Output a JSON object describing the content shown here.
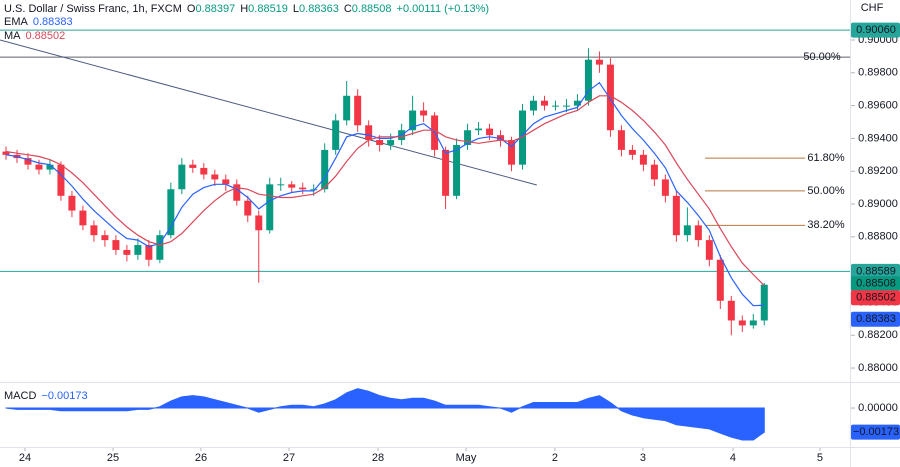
{
  "chart_data": [
    {
      "type": "candlestick",
      "title": "U.S. Dollar / Swiss Franc, 1h, FXCM",
      "ohlc": [
        {
          "key": "O",
          "value": 0.88397
        },
        {
          "key": "H",
          "value": 0.88519
        },
        {
          "key": "L",
          "value": 0.88363
        },
        {
          "key": "C",
          "value": 0.88508
        }
      ],
      "change": "+0.00111 (+0.13%)",
      "currency": "CHF",
      "up_color": "#089981",
      "down_color": "#f23645",
      "open": [
        0.8932,
        0.893,
        0.8928,
        0.8924,
        0.8921,
        0.8924,
        0.8905,
        0.8896,
        0.8887,
        0.8881,
        0.8878,
        0.8872,
        0.8869,
        0.8875,
        0.8866,
        0.8881,
        0.8909,
        0.8924,
        0.8922,
        0.8918,
        0.8915,
        0.8912,
        0.8902,
        0.8893,
        0.8884,
        0.8912,
        0.8912,
        0.891,
        0.8909,
        0.8909,
        0.8933,
        0.8951,
        0.8966,
        0.8948,
        0.8939,
        0.8936,
        0.8939,
        0.8945,
        0.8957,
        0.8954,
        0.8933,
        0.8905,
        0.8936,
        0.8945,
        0.8946,
        0.8942,
        0.8939,
        0.8924,
        0.8957,
        0.8963,
        0.896,
        0.896,
        0.896,
        0.8963,
        0.8988,
        0.8985,
        0.8945,
        0.8933,
        0.893,
        0.8924,
        0.8915,
        0.8905,
        0.8881,
        0.8887,
        0.8878,
        0.8866,
        0.8841,
        0.8829,
        0.8826,
        0.8829
      ],
      "high": [
        0.8935,
        0.8933,
        0.8931,
        0.8927,
        0.8927,
        0.8926,
        0.8908,
        0.8899,
        0.889,
        0.8884,
        0.8881,
        0.8875,
        0.8879,
        0.8878,
        0.8884,
        0.8913,
        0.8928,
        0.8927,
        0.8925,
        0.8921,
        0.8918,
        0.8915,
        0.8905,
        0.8896,
        0.8916,
        0.8916,
        0.8914,
        0.8913,
        0.8912,
        0.8937,
        0.8955,
        0.8975,
        0.897,
        0.8951,
        0.8942,
        0.8943,
        0.8949,
        0.8966,
        0.8962,
        0.8956,
        0.8935,
        0.894,
        0.8949,
        0.895,
        0.8949,
        0.8945,
        0.8941,
        0.8961,
        0.8966,
        0.8966,
        0.8963,
        0.8964,
        0.8967,
        0.8995,
        0.8993,
        0.8989,
        0.8948,
        0.8936,
        0.8933,
        0.8927,
        0.8918,
        0.8908,
        0.8898,
        0.889,
        0.8881,
        0.8869,
        0.8844,
        0.8832,
        0.8833,
        0.88519
      ],
      "low": [
        0.8927,
        0.8925,
        0.8921,
        0.8918,
        0.8918,
        0.8902,
        0.8892,
        0.8884,
        0.8877,
        0.8874,
        0.8869,
        0.8865,
        0.8866,
        0.8862,
        0.8864,
        0.8879,
        0.8906,
        0.8919,
        0.8915,
        0.8911,
        0.8908,
        0.8899,
        0.8889,
        0.8852,
        0.8882,
        0.8908,
        0.8907,
        0.8906,
        0.8905,
        0.8907,
        0.893,
        0.8948,
        0.8944,
        0.8935,
        0.8932,
        0.8933,
        0.8936,
        0.8942,
        0.895,
        0.8929,
        0.8897,
        0.8903,
        0.8933,
        0.8942,
        0.8939,
        0.8935,
        0.892,
        0.8921,
        0.8954,
        0.8957,
        0.8957,
        0.8956,
        0.8957,
        0.896,
        0.898,
        0.8941,
        0.8929,
        0.8927,
        0.892,
        0.8911,
        0.8901,
        0.8877,
        0.8877,
        0.8874,
        0.8862,
        0.8836,
        0.882,
        0.8822,
        0.8824,
        0.8826
      ],
      "close": [
        0.893,
        0.8928,
        0.8924,
        0.8921,
        0.8924,
        0.8905,
        0.8896,
        0.8887,
        0.8881,
        0.8878,
        0.8872,
        0.8869,
        0.8875,
        0.8866,
        0.8881,
        0.8909,
        0.8924,
        0.8922,
        0.8918,
        0.8915,
        0.8912,
        0.8902,
        0.8893,
        0.8884,
        0.8912,
        0.8912,
        0.891,
        0.8909,
        0.8909,
        0.8933,
        0.8951,
        0.8966,
        0.8948,
        0.8939,
        0.8936,
        0.8939,
        0.8945,
        0.8957,
        0.8954,
        0.8933,
        0.8905,
        0.8936,
        0.8945,
        0.8946,
        0.8942,
        0.8939,
        0.8924,
        0.8957,
        0.8963,
        0.896,
        0.896,
        0.896,
        0.8963,
        0.8988,
        0.8985,
        0.8945,
        0.8933,
        0.893,
        0.8924,
        0.8915,
        0.8905,
        0.8881,
        0.8887,
        0.8878,
        0.8866,
        0.8841,
        0.8829,
        0.8826,
        0.8829,
        0.88508
      ],
      "series": [
        {
          "name": "EMA",
          "legend_value": 0.88383,
          "color": "#2962ff",
          "values": [
            0.893,
            0.8929,
            0.8927,
            0.8925,
            0.8924,
            0.8918,
            0.8911,
            0.8903,
            0.8896,
            0.889,
            0.8884,
            0.8879,
            0.8878,
            0.8874,
            0.8876,
            0.8886,
            0.8898,
            0.8906,
            0.891,
            0.8912,
            0.8912,
            0.8909,
            0.8904,
            0.8897,
            0.8902,
            0.8905,
            0.8907,
            0.8908,
            0.8908,
            0.8916,
            0.8928,
            0.8941,
            0.8943,
            0.8942,
            0.894,
            0.894,
            0.8942,
            0.8947,
            0.8949,
            0.8944,
            0.8931,
            0.8933,
            0.8937,
            0.894,
            0.8941,
            0.894,
            0.8935,
            0.8942,
            0.8949,
            0.8953,
            0.8955,
            0.8957,
            0.8959,
            0.8969,
            0.8974,
            0.8964,
            0.8954,
            0.8946,
            0.8939,
            0.8931,
            0.8922,
            0.8908,
            0.8901,
            0.8893,
            0.8884,
            0.8868,
            0.8855,
            0.8845,
            0.8838,
            0.88383
          ]
        },
        {
          "name": "MA",
          "legend_value": 0.88502,
          "color": "#d9485a",
          "values": [
            0.8932,
            0.8931,
            0.893,
            0.8929,
            0.8927,
            0.8924,
            0.8919,
            0.8913,
            0.8906,
            0.8899,
            0.8892,
            0.8886,
            0.8881,
            0.8877,
            0.8875,
            0.8877,
            0.8882,
            0.8889,
            0.8896,
            0.8902,
            0.8907,
            0.891,
            0.8909,
            0.8906,
            0.8905,
            0.8904,
            0.8904,
            0.8905,
            0.8906,
            0.891,
            0.8917,
            0.8926,
            0.8934,
            0.8939,
            0.8941,
            0.8941,
            0.8941,
            0.8943,
            0.8945,
            0.8945,
            0.8941,
            0.8939,
            0.8938,
            0.8937,
            0.8938,
            0.8939,
            0.8938,
            0.8941,
            0.8945,
            0.8949,
            0.8952,
            0.8955,
            0.8957,
            0.8962,
            0.8966,
            0.8966,
            0.8962,
            0.8957,
            0.8951,
            0.8944,
            0.8936,
            0.8925,
            0.8915,
            0.8906,
            0.8897,
            0.8885,
            0.8874,
            0.8864,
            0.8857,
            0.88502
          ]
        }
      ],
      "xlim": [
        -0.546,
        76.8
      ],
      "xticks": [
        {
          "value": 1.73,
          "label": "24"
        },
        {
          "value": 9.74,
          "label": "25"
        },
        {
          "value": 17.74,
          "label": "26"
        },
        {
          "value": 25.75,
          "label": "27"
        },
        {
          "value": 33.85,
          "label": "28"
        },
        {
          "value": 41.86,
          "label": "May"
        },
        {
          "value": 49.95,
          "label": "2"
        },
        {
          "value": 57.96,
          "label": "3"
        },
        {
          "value": 66.15,
          "label": "4"
        },
        {
          "value": 74.07,
          "label": "5"
        }
      ],
      "ylim": [
        0.87927,
        0.90244
      ],
      "yticks": [
        {
          "value": 0.9,
          "label": "0.90000"
        },
        {
          "value": 0.898,
          "label": "0.89800"
        },
        {
          "value": 0.896,
          "label": "0.89600"
        },
        {
          "value": 0.894,
          "label": "0.89400"
        },
        {
          "value": 0.892,
          "label": "0.89200"
        },
        {
          "value": 0.89,
          "label": "0.89000"
        },
        {
          "value": 0.888,
          "label": "0.88800"
        },
        {
          "value": 0.886,
          "label": "0.88600"
        },
        {
          "value": 0.884,
          "label": "0.88400"
        },
        {
          "value": 0.882,
          "label": "0.88200"
        },
        {
          "value": 0.88,
          "label": "0.88000"
        }
      ],
      "price_tags": [
        {
          "value": 0.9006,
          "label": "0.90060",
          "color": "#26a69a",
          "text_color": "#131722"
        },
        {
          "value": 0.88589,
          "label": "0.88589",
          "color": "#26a69a",
          "text_color": "#131722"
        },
        {
          "value": 0.88508,
          "label": "0.88508",
          "color": "#089981",
          "text_color": "#ffffff"
        },
        {
          "value": 0.88502,
          "label": "0.88502",
          "color": "#f23645",
          "text_color": "#ffffff"
        },
        {
          "value": 0.88383,
          "label": "0.88383",
          "color": "#2962ff",
          "text_color": "#ffffff"
        }
      ],
      "hlines": [
        {
          "value": 0.9006,
          "color": "#26a69a"
        },
        {
          "value": 0.88589,
          "color": "#26a69a"
        },
        {
          "value": 0.89896,
          "color": "#5d606b",
          "label": "50.00%",
          "label_color": "#5b4a9b"
        }
      ],
      "fib_color": "#b8763f",
      "fib_levels": [
        {
          "value": 0.8928,
          "label": "61.80%"
        },
        {
          "value": 0.8908,
          "label": "50.00%"
        },
        {
          "value": 0.8887,
          "label": "38.20%"
        }
      ],
      "trend_line": {
        "color": "#4a5a80",
        "x": [
          -0.546,
          48.3
        ],
        "y": [
          0.9,
          0.89116
        ]
      }
    },
    {
      "type": "area",
      "title": "MACD",
      "legend_value": {
        "value": -0.00173,
        "label": "−0.00173"
      },
      "color": "#2962ff",
      "values": [
        0.0,
        -0.0001,
        -0.0001,
        -0.0001,
        -0.0001,
        -0.0002,
        -0.0002,
        -0.0002,
        -0.0002,
        -0.0002,
        -0.0002,
        -0.0002,
        -0.0001,
        -0.0001,
        0.0001,
        0.0005,
        0.0008,
        0.0009,
        0.0008,
        0.0006,
        0.0004,
        0.0002,
        0.0,
        -0.0003,
        -0.0001,
        0.0001,
        0.0002,
        0.0002,
        0.0001,
        0.0003,
        0.0006,
        0.0011,
        0.0014,
        0.0012,
        0.0009,
        0.0007,
        0.0006,
        0.0007,
        0.0007,
        0.0005,
        0.0002,
        0.0002,
        0.0002,
        0.0002,
        0.0001,
        0.0,
        -0.0003,
        0.0001,
        0.0004,
        0.0004,
        0.0004,
        0.0004,
        0.0004,
        0.0007,
        0.0009,
        0.0004,
        -0.0002,
        -0.0005,
        -0.0007,
        -0.0008,
        -0.0009,
        -0.0012,
        -0.0013,
        -0.0014,
        -0.0015,
        -0.0018,
        -0.0021,
        -0.0023,
        -0.0023,
        -0.00173
      ],
      "ylim": [
        -0.00266,
        0.00166
      ],
      "yticks": [
        {
          "value": 0,
          "label": "0.00000"
        }
      ],
      "price_tags": [
        {
          "value": -0.00173,
          "label": "−0.00173",
          "color": "#2962ff",
          "text_color": "#ffffff"
        }
      ]
    }
  ]
}
